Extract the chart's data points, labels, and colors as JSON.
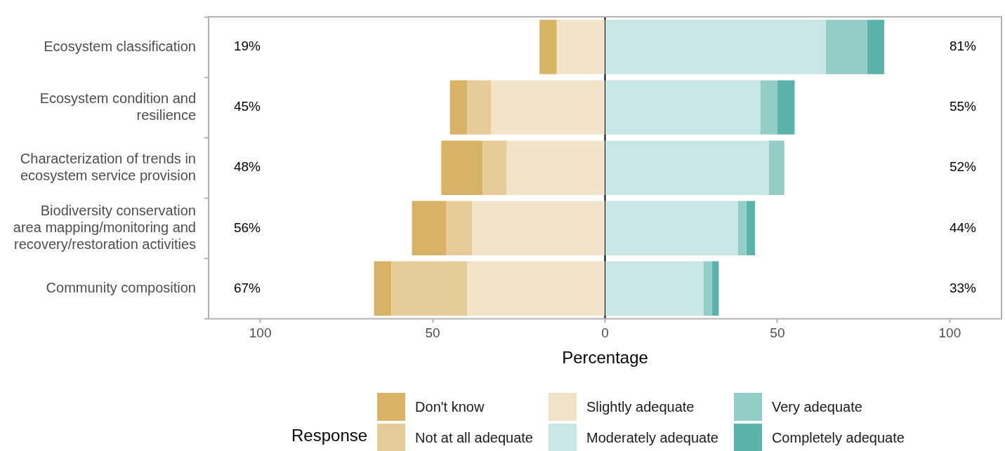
{
  "chart_data": {
    "type": "bar",
    "orientation": "horizontal",
    "stacked": true,
    "xlabel": "Percentage",
    "legend_title": "Response",
    "legend": "bottom",
    "grid": false,
    "categories": [
      "Ecosystem classification",
      "Ecosystem condition and resilience",
      "Characterization of trends in ecosystem service provision",
      "Biodiversity conservation area mapping/monitoring and recovery/restoration activities",
      "Community composition"
    ],
    "series": [
      {
        "name": "Slightly adequate",
        "color": "#f2e4c9",
        "values": [
          -14,
          -33,
          -28.5,
          -38.5,
          -40
        ]
      },
      {
        "name": "Not at all adequate",
        "color": "#e6cc98",
        "values": [
          0,
          -7,
          -7,
          -7.5,
          -22
        ]
      },
      {
        "name": "Don't know",
        "color": "#d8b365",
        "values": [
          -5,
          -5,
          -12,
          -10,
          -5
        ]
      },
      {
        "name": "Moderately adequate",
        "color": "#c8e6e3",
        "values": [
          64,
          45,
          47.5,
          38.5,
          28.5
        ]
      },
      {
        "name": "Very adequate",
        "color": "#93cec6",
        "values": [
          12,
          5,
          4.5,
          2.5,
          2.5
        ]
      },
      {
        "name": "Completely adequate",
        "color": "#5ab4ac",
        "values": [
          5,
          5,
          0,
          2.5,
          2
        ]
      }
    ],
    "xlim": [
      -115,
      115
    ],
    "xticks": [
      {
        "value": -100,
        "label": "100"
      },
      {
        "value": -50,
        "label": "50"
      },
      0,
      50,
      100
    ],
    "ref_lines": [
      {
        "axis": "x",
        "value": 0,
        "color": "#000000"
      }
    ],
    "annotations": [
      "19%",
      "45%",
      "48%",
      "56%",
      "67%",
      "81%",
      "55%",
      "52%",
      "44%",
      "33%"
    ]
  }
}
